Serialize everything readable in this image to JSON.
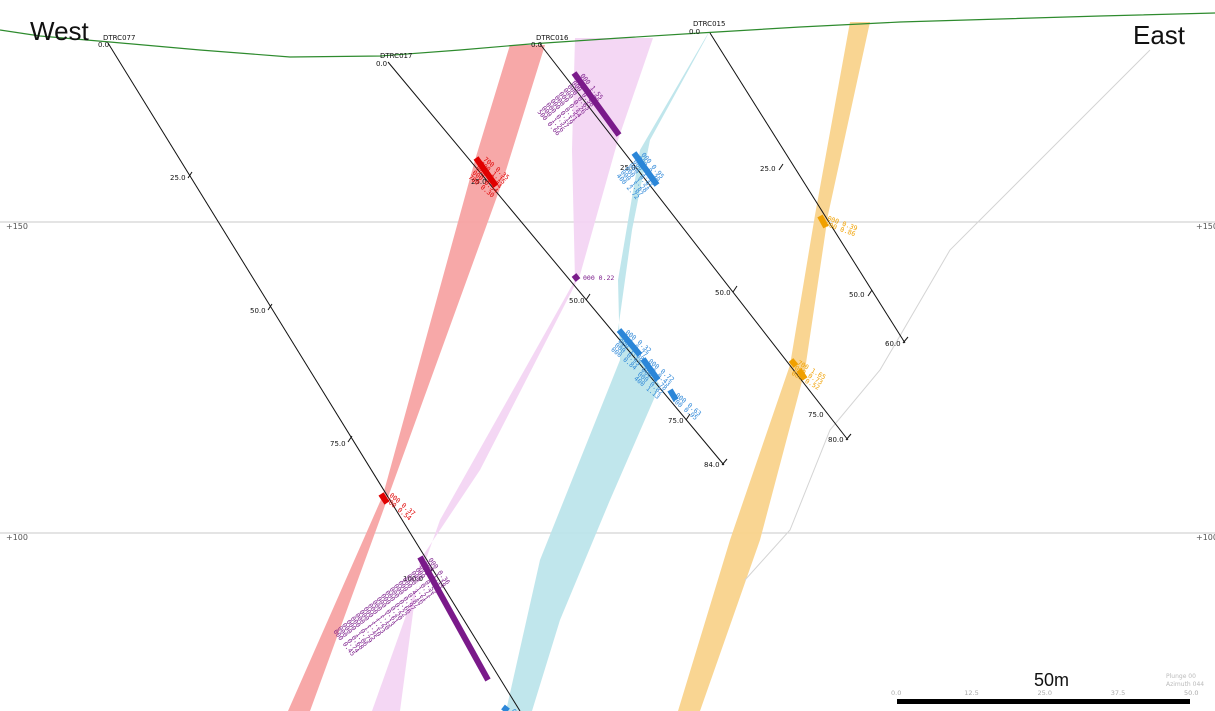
{
  "labels": {
    "west": "West",
    "east": "East",
    "elevation": [
      "+150",
      "+100"
    ],
    "scale_title": "50m",
    "scale_ticks": [
      "0.0",
      "12.5",
      "25.0",
      "37.5",
      "50.0"
    ],
    "plunge": "Plunge 00",
    "azimuth": "Azimuth 044"
  },
  "colors": {
    "topography": "#2e8b2e",
    "red_zone": "#f7a3a3",
    "pink_zone": "#f3d3f3",
    "cyan_zone": "#b9e3ea",
    "orange_zone": "#f9d38c",
    "red_assay": "#e00000",
    "purple_assay": "#7a1a8a",
    "blue_assay": "#2b86d8",
    "orange_assay": "#f0a000"
  },
  "holes": [
    {
      "id": "DTRC077",
      "collar": "0.0",
      "depths": [
        "25.0",
        "50.0",
        "75.0",
        "100.0"
      ]
    },
    {
      "id": "DTRC017",
      "collar": "0.0",
      "depths": [
        "25.0",
        "50.0",
        "75.0"
      ],
      "end": "84.0"
    },
    {
      "id": "DTRC016",
      "collar": "0.0",
      "depths": [
        "25.0",
        "50.0",
        "75.0"
      ],
      "end": "80.0"
    },
    {
      "id": "DTRC015",
      "collar": "0.0",
      "depths": [
        "25.0",
        "50.0"
      ],
      "end": "60.0"
    }
  ],
  "assays": {
    "a077_red": [
      "000 0.37",
      "700 0.54"
    ],
    "a077_purple": [
      "000 0.36",
      "000 1.18",
      "000 0.24",
      "000 0.52",
      "000 0.71",
      "000 1.21",
      "000 4.16",
      "000 0.87",
      "000 0.97",
      "000 0.66",
      "000 0.22",
      "000 0.20",
      "000 0.61",
      "000 1.13",
      "000 1.20",
      "000 1.23",
      "000 1.10",
      "000 1.75",
      "000 0.79",
      "000 1.06",
      "000 0.68",
      "000 0.74",
      "000 0.45"
    ],
    "a077_blue": [
      "000 0.42"
    ],
    "a017_red": [
      "700 0.35",
      "000 1.15",
      "000 0.74",
      "000 0.54",
      "700 0.30"
    ],
    "a017_purple": [
      "000 0.22"
    ],
    "a017_blue": [
      "000 0.32",
      "000 0.77",
      "000 1.08",
      "000 0.93",
      "000 0.84",
      "000 0.72",
      "000 0.43",
      "000 0.78",
      "000 0.82",
      "400 1.13",
      "000 0.63",
      "400 0.95"
    ],
    "a016_purple": [
      "000 1.55",
      "000 0.79",
      "000 0.58",
      "000 0.63",
      "000 0.26",
      "000 0.54",
      "000 0.21",
      "000 0.19",
      "000 0.37",
      "000 1.26",
      "500 0.66"
    ],
    "a016_blue": [
      "000 0.95",
      "000 0.30",
      "000 1.10",
      "000 0.91",
      "000 1.28",
      "000 1.87",
      "400 2.72"
    ],
    "a016_orange": [
      "700 1.65",
      "000 0.73",
      "000 0.52"
    ],
    "a015_orange": [
      "000 0.39",
      "000 0.86"
    ]
  }
}
